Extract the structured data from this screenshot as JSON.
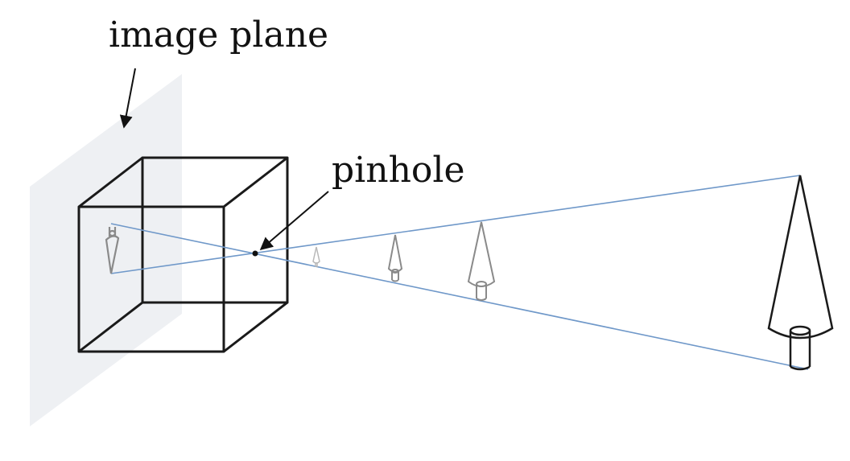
{
  "labels": {
    "image_plane": "image plane",
    "pinhole": "pinhole"
  },
  "colors": {
    "plane_fill": "#eef0f3",
    "box_stroke": "#1a1a1a",
    "ray": "#6f98c9",
    "object_dark": "#1a1a1a",
    "object_gray": "#8a8a8a",
    "object_light": "#b8b8b8"
  }
}
